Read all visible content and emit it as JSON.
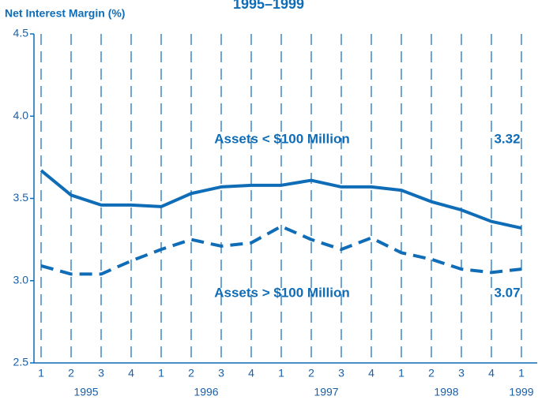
{
  "chart_data": {
    "type": "line",
    "title": "1995–1999",
    "y_axis_label": "Net Interest Margin (%)",
    "categories": [
      "1",
      "2",
      "3",
      "4",
      "1",
      "2",
      "3",
      "4",
      "1",
      "2",
      "3",
      "4",
      "1",
      "2",
      "3",
      "4",
      "1"
    ],
    "groups": [
      "1995",
      "1996",
      "1997",
      "1998",
      "1999"
    ],
    "series": [
      {
        "name": "Assets < $100 Million",
        "color": "#0f6cb6",
        "dashed": false,
        "values": [
          3.67,
          3.52,
          3.46,
          3.46,
          3.45,
          3.53,
          3.57,
          3.58,
          3.58,
          3.61,
          3.57,
          3.57,
          3.55,
          3.48,
          3.43,
          3.36,
          3.32
        ]
      },
      {
        "name": "Assets > $100 Million",
        "color": "#0f6cb6",
        "dashed": true,
        "values": [
          3.09,
          3.04,
          3.04,
          3.12,
          3.19,
          3.25,
          3.21,
          3.23,
          3.33,
          3.25,
          3.19,
          3.26,
          3.17,
          3.13,
          3.07,
          3.05,
          3.07
        ]
      }
    ],
    "ylim": [
      2.5,
      4.5
    ],
    "yticks": [
      2.5,
      {
        "value": 3.0,
        "label": "3.0"
      },
      3.5,
      {
        "value": 4.0,
        "label": "4.0"
      },
      4.5
    ],
    "grid": "vertical-dashed"
  }
}
